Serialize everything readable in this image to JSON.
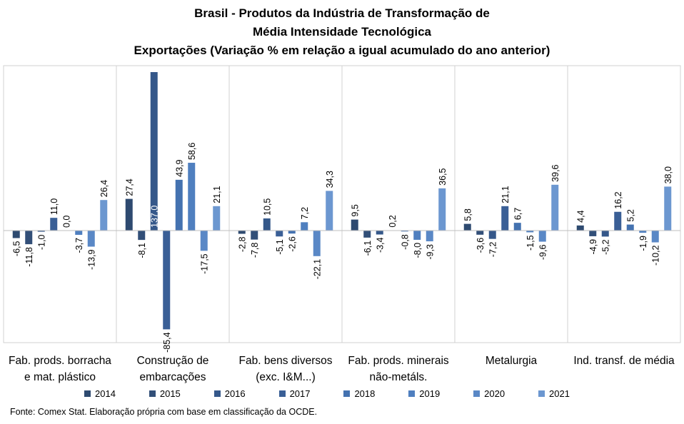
{
  "chart_data": {
    "type": "bar",
    "title": [
      "Brasil - Produtos da Indústria de Transformação de",
      "Média Intensidade Tecnológica",
      "Exportações (Variação % em relação a igual acumulado do ano anterior)"
    ],
    "categories": [
      [
        "Fab. prods. borracha",
        "e mat. plástico"
      ],
      [
        "Construção de",
        "embarcações"
      ],
      [
        "Fab. bens diversos",
        "(exc. I&M...)"
      ],
      [
        "Fab. prods. minerais",
        "não-metáls."
      ],
      [
        "Metalurgia"
      ],
      [
        "Ind. transf. de média"
      ]
    ],
    "series": [
      {
        "name": "2014",
        "color": "#2e4a70",
        "values": [
          -6.5,
          27.4,
          -2.8,
          9.5,
          5.8,
          4.4
        ]
      },
      {
        "name": "2015",
        "color": "#324f78",
        "values": [
          -11.8,
          -8.1,
          -7.8,
          -6.1,
          -3.6,
          -4.9
        ]
      },
      {
        "name": "2016",
        "color": "#35588a",
        "values": [
          -1.0,
          137.0,
          10.5,
          -3.4,
          -7.2,
          -5.2
        ]
      },
      {
        "name": "2017",
        "color": "#3a5f96",
        "values": [
          11.0,
          -85.4,
          -5.1,
          0.2,
          21.1,
          16.2
        ]
      },
      {
        "name": "2018",
        "color": "#4472b0",
        "values": [
          0.0,
          43.9,
          -2.6,
          -0.8,
          6.7,
          5.2
        ]
      },
      {
        "name": "2019",
        "color": "#4f7fbf",
        "values": [
          -3.7,
          58.6,
          7.2,
          -8.0,
          -1.5,
          -1.9
        ]
      },
      {
        "name": "2020",
        "color": "#5a88c6",
        "values": [
          -13.9,
          -17.5,
          -22.1,
          -9.3,
          -9.6,
          -10.2
        ]
      },
      {
        "name": "2021",
        "color": "#6c97d0",
        "values": [
          26.4,
          21.1,
          34.3,
          36.5,
          39.6,
          38.0
        ]
      }
    ],
    "data_labels": [
      [
        "-6,5",
        "27,4",
        "-2,8",
        "9,5",
        "5,8",
        "4,4"
      ],
      [
        "-11,8",
        "-8,1",
        "-7,8",
        "-6,1",
        "-3,6",
        "-4,9"
      ],
      [
        "-1,0",
        "137,0",
        "10,5",
        "-3,4",
        "-7,2",
        "-5,2"
      ],
      [
        "11,0",
        "-85,4",
        "-5,1",
        "0,2",
        "21,1",
        "16,2"
      ],
      [
        "0,0",
        "43,9",
        "-2,6",
        "-0,8",
        "6,7",
        "5,2"
      ],
      [
        "-3,7",
        "58,6",
        "7,2",
        "-8,0",
        "-1,5",
        "-1,9"
      ],
      [
        "-13,9",
        "-17,5",
        "-22,1",
        "-9,3",
        "-9,6",
        "-10,2"
      ],
      [
        "26,4",
        "21,1",
        "34,3",
        "36,5",
        "39,6",
        "38,0"
      ]
    ],
    "xlabel": "",
    "ylabel": "",
    "ylim": [
      -85.4,
      137.0
    ],
    "grid": false,
    "legend_position": "bottom",
    "source": "Fonte: Comex Stat. Elaboração própria com base em classificação da OCDE."
  }
}
